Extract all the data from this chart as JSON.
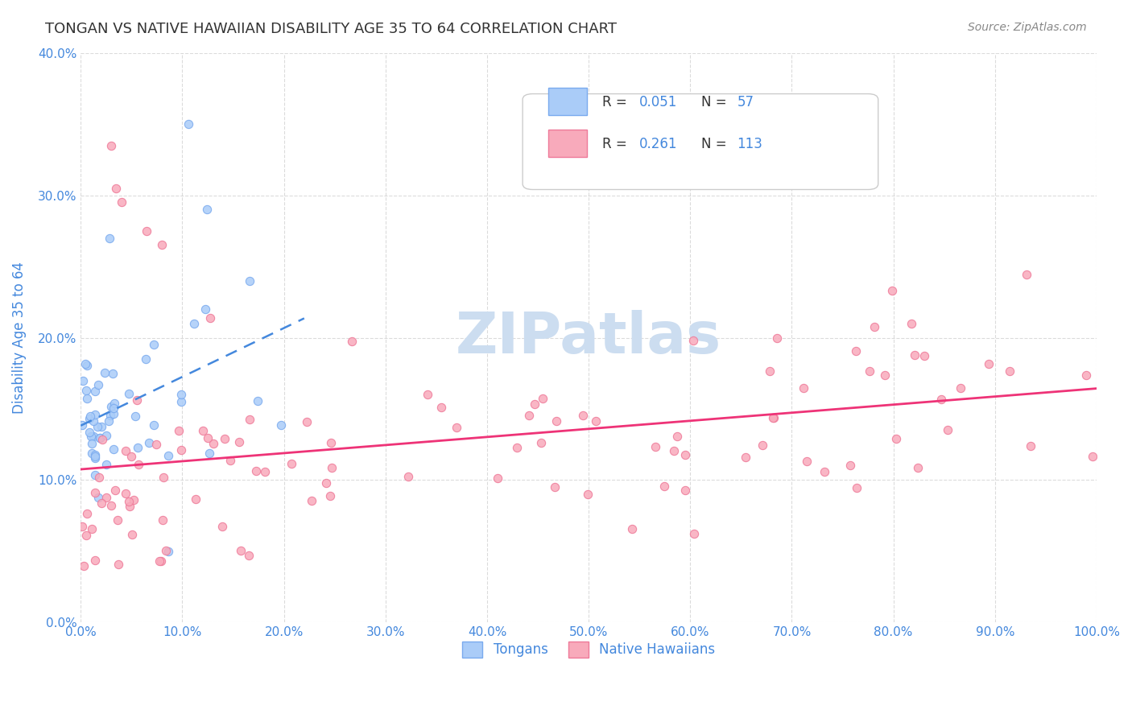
{
  "title": "TONGAN VS NATIVE HAWAIIAN DISABILITY AGE 35 TO 64 CORRELATION CHART",
  "source": "Source: ZipAtlas.com",
  "ylabel": "Disability Age 35 to 64",
  "xlim": [
    0.0,
    1.0
  ],
  "ylim": [
    0.0,
    0.4
  ],
  "tongan_color": "#aaccf8",
  "tongan_edge": "#7aaaee",
  "native_hawaiian_color": "#f8aabb",
  "native_hawaiian_edge": "#ee7a99",
  "trendline_tongan_color": "#4488dd",
  "trendline_nh_color": "#ee3377",
  "background_color": "#ffffff",
  "grid_color": "#cccccc",
  "axis_color": "#4488dd",
  "R_tongan": 0.051,
  "N_tongan": 57,
  "R_nh": 0.261,
  "N_nh": 113,
  "watermark": "ZIPatlas",
  "watermark_color": "#ccddf0",
  "figsize": [
    14.06,
    8.92
  ],
  "dpi": 100
}
